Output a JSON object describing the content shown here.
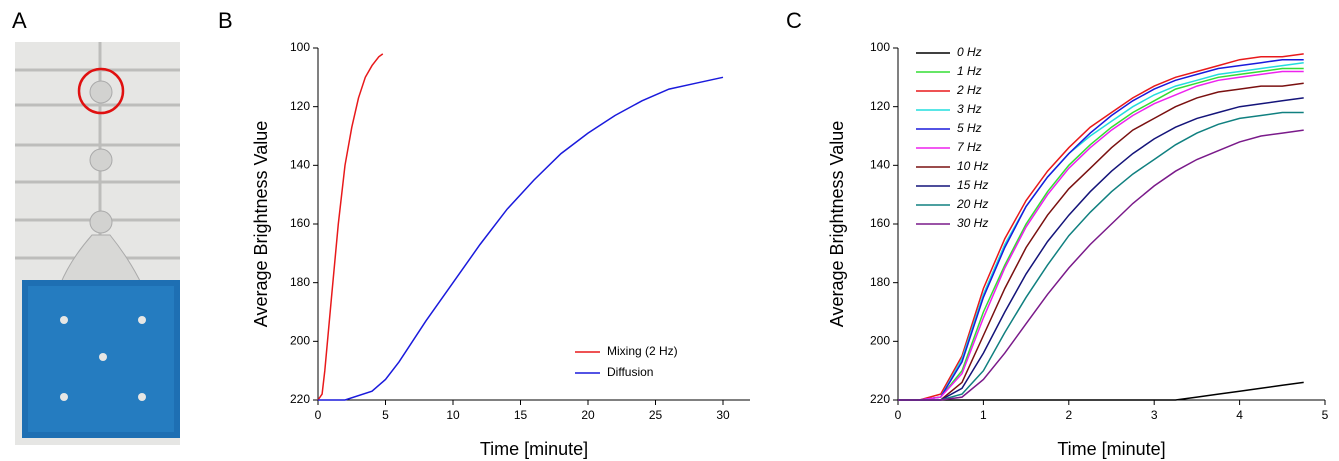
{
  "panel_labels": [
    "A",
    "B",
    "C"
  ],
  "chart_data": [
    {
      "type": "line",
      "xlabel": "Time [minute]",
      "ylabel": "Average Brightness Value",
      "xlim": [
        0,
        32
      ],
      "xticks": [
        0,
        5,
        10,
        15,
        20,
        25,
        30
      ],
      "ylim": [
        220,
        100
      ],
      "yticks": [
        100,
        120,
        140,
        160,
        180,
        200,
        220
      ],
      "legend": "lower right",
      "series": [
        {
          "name": "Mixing (2 Hz)",
          "color": "#e8191b",
          "x": [
            0,
            0.3,
            0.5,
            1,
            1.5,
            2,
            2.5,
            3,
            3.5,
            4,
            4.5,
            4.8
          ],
          "values": [
            220,
            218,
            210,
            185,
            160,
            140,
            127,
            117,
            110,
            106,
            103,
            102
          ]
        },
        {
          "name": "Diffusion",
          "color": "#1a1adc",
          "x": [
            0,
            2,
            4,
            5,
            6,
            8,
            10,
            12,
            14,
            16,
            18,
            20,
            22,
            24,
            26,
            28,
            30
          ],
          "values": [
            220,
            220,
            217,
            213,
            207,
            193,
            180,
            167,
            155,
            145,
            136,
            129,
            123,
            118,
            114,
            112,
            110
          ]
        }
      ]
    },
    {
      "type": "line",
      "xlabel": "Time [minute]",
      "ylabel": "Average Brightness Value",
      "xlim": [
        0,
        5
      ],
      "xticks": [
        0,
        1,
        2,
        3,
        4,
        5
      ],
      "ylim": [
        220,
        100
      ],
      "yticks": [
        100,
        120,
        140,
        160,
        180,
        200,
        220
      ],
      "legend": "upper left",
      "x": [
        0,
        0.25,
        0.5,
        0.75,
        1,
        1.25,
        1.5,
        1.75,
        2,
        2.25,
        2.5,
        2.75,
        3,
        3.25,
        3.5,
        3.75,
        4,
        4.25,
        4.5,
        4.75
      ],
      "series": [
        {
          "name": "0 Hz",
          "color": "#000000",
          "values": [
            220,
            220,
            220,
            220,
            220,
            220,
            220,
            220,
            220,
            220,
            220,
            220,
            220,
            220,
            219,
            218,
            217,
            216,
            215,
            214
          ]
        },
        {
          "name": "1 Hz",
          "color": "#33dd33",
          "values": [
            220,
            220,
            219,
            210,
            190,
            174,
            160,
            149,
            140,
            133,
            127,
            122,
            118,
            114,
            112,
            110,
            109,
            108,
            107,
            107
          ]
        },
        {
          "name": "2 Hz",
          "color": "#e8191b",
          "values": [
            220,
            220,
            218,
            205,
            182,
            165,
            152,
            142,
            134,
            127,
            122,
            117,
            113,
            110,
            108,
            106,
            104,
            103,
            103,
            102
          ]
        },
        {
          "name": "3 Hz",
          "color": "#22dddd",
          "values": [
            220,
            220,
            219,
            206,
            184,
            167,
            154,
            144,
            136,
            130,
            125,
            120,
            116,
            113,
            111,
            109,
            108,
            107,
            106,
            105
          ]
        },
        {
          "name": "5 Hz",
          "color": "#1a1adc",
          "values": [
            220,
            220,
            219,
            207,
            185,
            168,
            154,
            144,
            136,
            129,
            123,
            118,
            114,
            111,
            109,
            107,
            106,
            105,
            104,
            104
          ]
        },
        {
          "name": "7 Hz",
          "color": "#ee22ee",
          "values": [
            220,
            220,
            219,
            211,
            192,
            175,
            161,
            150,
            141,
            134,
            128,
            123,
            119,
            116,
            113,
            111,
            110,
            109,
            108,
            108
          ]
        },
        {
          "name": "10 Hz",
          "color": "#7a1010",
          "values": [
            220,
            220,
            220,
            214,
            198,
            182,
            168,
            157,
            148,
            141,
            134,
            128,
            124,
            120,
            117,
            115,
            114,
            113,
            113,
            112
          ]
        },
        {
          "name": "15 Hz",
          "color": "#14147a",
          "values": [
            220,
            220,
            220,
            216,
            204,
            190,
            177,
            166,
            157,
            149,
            142,
            136,
            131,
            127,
            124,
            122,
            120,
            119,
            118,
            117
          ]
        },
        {
          "name": "20 Hz",
          "color": "#108080",
          "values": [
            220,
            220,
            220,
            218,
            210,
            197,
            185,
            174,
            164,
            156,
            149,
            143,
            138,
            133,
            129,
            126,
            124,
            123,
            122,
            122
          ]
        },
        {
          "name": "30 Hz",
          "color": "#7a1a8a",
          "values": [
            220,
            220,
            220,
            219,
            213,
            204,
            194,
            184,
            175,
            167,
            160,
            153,
            147,
            142,
            138,
            135,
            132,
            130,
            129,
            128
          ]
        }
      ]
    }
  ]
}
